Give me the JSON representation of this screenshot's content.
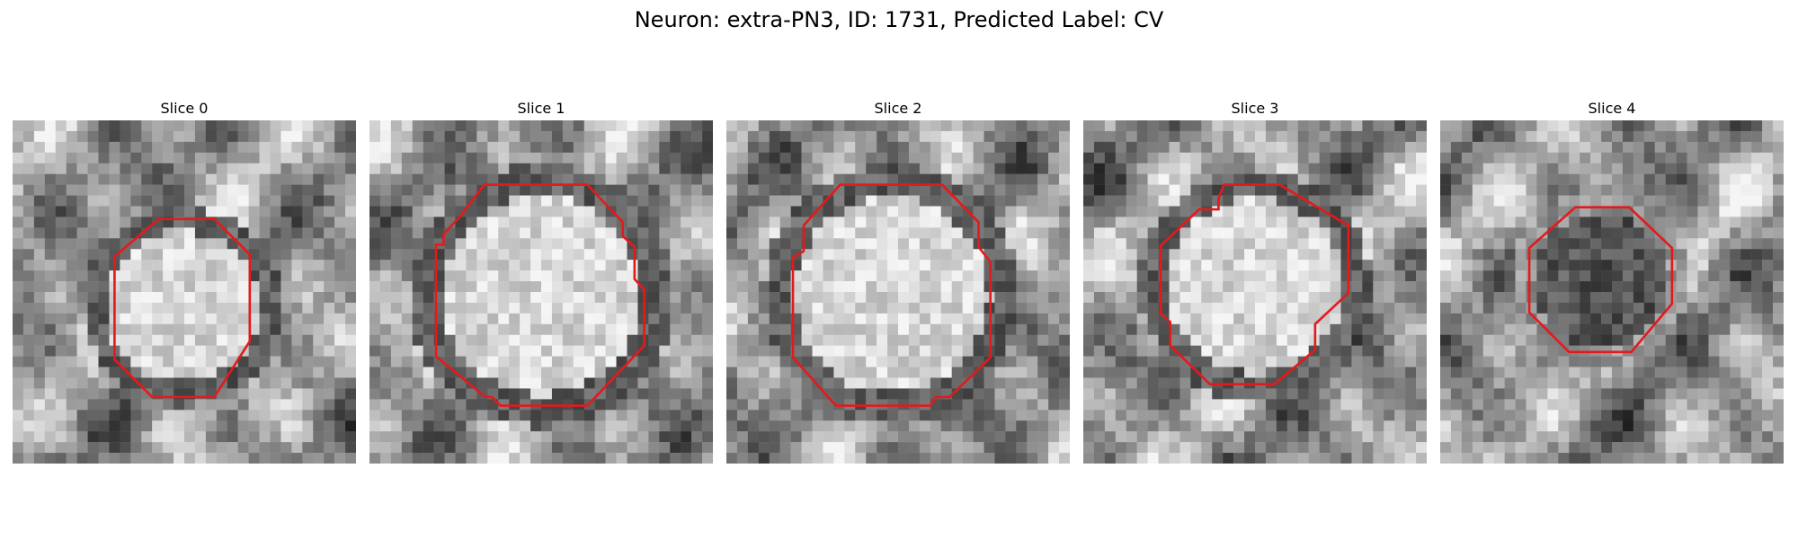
{
  "figure": {
    "title": "Neuron: extra-PN3, ID: 1731, Predicted Label: CV"
  },
  "panels": [
    {
      "title": "Slice 0",
      "outline_color": "#e31a1c",
      "cell_style": "bright"
    },
    {
      "title": "Slice 1",
      "outline_color": "#e31a1c",
      "cell_style": "bright"
    },
    {
      "title": "Slice 2",
      "outline_color": "#e31a1c",
      "cell_style": "bright"
    },
    {
      "title": "Slice 3",
      "outline_color": "#e31a1c",
      "cell_style": "bright"
    },
    {
      "title": "Slice 4",
      "outline_color": "#e31a1c",
      "cell_style": "dark"
    }
  ]
}
